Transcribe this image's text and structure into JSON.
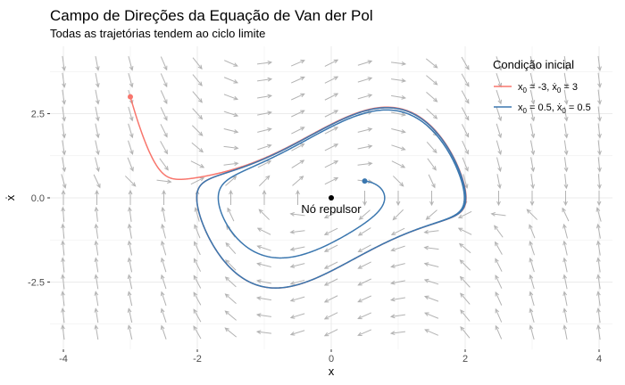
{
  "chart_data": {
    "type": "line",
    "title": "Campo de Direções da Equação de Van der Pol",
    "subtitle": "Todas as trajetórias tendem ao ciclo limite",
    "xlabel": "x",
    "ylabel": "ẋ",
    "xlim": [
      -4.2,
      4.2
    ],
    "ylim": [
      -4.5,
      4.5
    ],
    "xticks": [
      -4,
      -2,
      0,
      2,
      4
    ],
    "xtick_labels": [
      "-4",
      "-2",
      "0",
      "2",
      "4"
    ],
    "yticks": [
      -2.5,
      0,
      2.5
    ],
    "ytick_labels": [
      "-2.5",
      "0.0",
      "2.5"
    ],
    "grid": true,
    "mu": 1,
    "legend": {
      "title": "Condição inicial",
      "placement": "top-right"
    },
    "colors": {
      "field": "#b3b3b3",
      "panel": "#ffffff",
      "grid": "#ebebeb"
    },
    "series": [
      {
        "name": "x0 = -3, ẋ0 = 3",
        "label_parts": {
          "x": "x",
          "sub": "0",
          "mid": " = -3, ",
          "xd": "ẋ",
          "sub2": "0",
          "end": " = 3"
        },
        "color": "#f8766d",
        "x0": -3,
        "y0": 3
      },
      {
        "name": "x0 = 0.5, ẋ0 = 0.5",
        "label_parts": {
          "x": "x",
          "sub": "0",
          "mid": " = 0.5, ",
          "xd": "ẋ",
          "sub2": "0",
          "end": " = 0.5"
        },
        "color": "#3b77af",
        "x0": 0.5,
        "y0": 0.5
      }
    ],
    "annotation": {
      "text": "Nó repulsor",
      "x": 0,
      "y": 0
    }
  }
}
